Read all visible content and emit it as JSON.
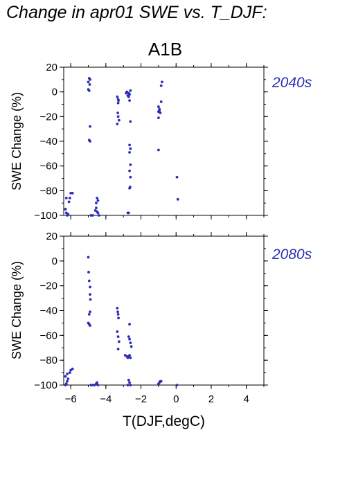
{
  "title": "Change in apr01 SWE vs. T_DJF:",
  "scenario": "A1B",
  "colors": {
    "points": "#2b2fb8",
    "period_label": "#2b2fb8",
    "axes": "#000000"
  },
  "chart_data": [
    {
      "type": "scatter",
      "panel_label": "2040s",
      "xlabel": "",
      "ylabel": "SWE Change (%)",
      "xlim": [
        -6.4,
        5.0
      ],
      "ylim": [
        -100,
        20
      ],
      "yticks": [
        20,
        0,
        -20,
        -40,
        -60,
        -80,
        -100
      ],
      "ytick_labels": [
        "20",
        "0",
        "−20",
        "−40",
        "−60",
        "−80",
        "−100"
      ],
      "grid": false,
      "points": [
        [
          -6.3,
          -95
        ],
        [
          -6.25,
          -98
        ],
        [
          -6.2,
          -100
        ],
        [
          -6.15,
          -99
        ],
        [
          -6.25,
          -86
        ],
        [
          -6.1,
          -89
        ],
        [
          -6.05,
          -86
        ],
        [
          -6.0,
          -82
        ],
        [
          -5.9,
          -82
        ],
        [
          -4.85,
          -100
        ],
        [
          -4.75,
          -100
        ],
        [
          -4.6,
          -96
        ],
        [
          -4.55,
          -94
        ],
        [
          -4.5,
          -97
        ],
        [
          -4.45,
          -98
        ],
        [
          -4.4,
          -100
        ],
        [
          -4.5,
          -86
        ],
        [
          -4.45,
          -88
        ],
        [
          -4.55,
          -90
        ],
        [
          -5.0,
          8
        ],
        [
          -4.95,
          11
        ],
        [
          -4.9,
          10
        ],
        [
          -4.92,
          6
        ],
        [
          -5.0,
          2
        ],
        [
          -4.95,
          1
        ],
        [
          -4.9,
          -28
        ],
        [
          -4.95,
          -39
        ],
        [
          -4.9,
          -40
        ],
        [
          -3.35,
          -4
        ],
        [
          -3.3,
          -6
        ],
        [
          -3.28,
          -7
        ],
        [
          -3.3,
          -9
        ],
        [
          -3.32,
          -17
        ],
        [
          -3.3,
          -20
        ],
        [
          -3.25,
          -23
        ],
        [
          -3.35,
          -26
        ],
        [
          -2.85,
          -1
        ],
        [
          -2.8,
          0
        ],
        [
          -2.75,
          -3
        ],
        [
          -2.7,
          -1
        ],
        [
          -2.65,
          -2
        ],
        [
          -2.6,
          1
        ],
        [
          -2.7,
          -4
        ],
        [
          -2.65,
          -7
        ],
        [
          -2.6,
          -24
        ],
        [
          -2.65,
          -43
        ],
        [
          -2.6,
          -46
        ],
        [
          -2.65,
          -49
        ],
        [
          -2.6,
          -59
        ],
        [
          -2.65,
          -64
        ],
        [
          -2.6,
          -69
        ],
        [
          -2.62,
          -77
        ],
        [
          -2.65,
          -78
        ],
        [
          -2.7,
          -98
        ],
        [
          -2.75,
          -98
        ],
        [
          -1.0,
          -12
        ],
        [
          -0.95,
          -14
        ],
        [
          -1.0,
          -16
        ],
        [
          -0.9,
          -17
        ],
        [
          -0.95,
          -15
        ],
        [
          -1.0,
          -21
        ],
        [
          -1.0,
          -47
        ],
        [
          -0.85,
          -8
        ],
        [
          -0.85,
          5
        ],
        [
          -0.8,
          8
        ],
        [
          0.05,
          -69
        ],
        [
          0.1,
          -87
        ]
      ]
    },
    {
      "type": "scatter",
      "panel_label": "2080s",
      "xlabel": "T(DJF,degC)",
      "ylabel": "SWE Change (%)",
      "xlim": [
        -6.4,
        5.0
      ],
      "ylim": [
        -100,
        20
      ],
      "xticks": [
        -6,
        -4,
        -2,
        0,
        2,
        4
      ],
      "xtick_labels": [
        "−6",
        "−4",
        "−2",
        "0",
        "2",
        "4"
      ],
      "yticks": [
        20,
        0,
        -20,
        -40,
        -60,
        -80,
        -100
      ],
      "ytick_labels": [
        "20",
        "0",
        "−20",
        "−40",
        "−60",
        "−80",
        "−100"
      ],
      "grid": false,
      "points": [
        [
          -6.3,
          -100
        ],
        [
          -6.25,
          -99
        ],
        [
          -6.2,
          -97
        ],
        [
          -6.15,
          -95
        ],
        [
          -6.3,
          -93
        ],
        [
          -6.2,
          -91
        ],
        [
          -6.05,
          -90
        ],
        [
          -6.0,
          -88
        ],
        [
          -5.9,
          -87
        ],
        [
          -4.85,
          -100
        ],
        [
          -4.75,
          -100
        ],
        [
          -4.65,
          -100
        ],
        [
          -4.55,
          -99
        ],
        [
          -4.5,
          -98
        ],
        [
          -4.45,
          -100
        ],
        [
          -5.0,
          3
        ],
        [
          -4.98,
          -9
        ],
        [
          -4.95,
          -16
        ],
        [
          -4.9,
          -21
        ],
        [
          -4.9,
          -27
        ],
        [
          -4.88,
          -31
        ],
        [
          -4.95,
          -43
        ],
        [
          -4.9,
          -41
        ],
        [
          -5.0,
          -50
        ],
        [
          -4.95,
          -51
        ],
        [
          -4.9,
          -52
        ],
        [
          -3.35,
          -38
        ],
        [
          -3.32,
          -41
        ],
        [
          -3.3,
          -43
        ],
        [
          -3.28,
          -46
        ],
        [
          -3.35,
          -57
        ],
        [
          -3.3,
          -61
        ],
        [
          -3.25,
          -65
        ],
        [
          -3.3,
          -71
        ],
        [
          -2.9,
          -76
        ],
        [
          -2.8,
          -77
        ],
        [
          -2.75,
          -78
        ],
        [
          -2.7,
          -77
        ],
        [
          -2.65,
          -76
        ],
        [
          -2.6,
          -78
        ],
        [
          -2.65,
          -51
        ],
        [
          -2.7,
          -61
        ],
        [
          -2.65,
          -63
        ],
        [
          -2.6,
          -66
        ],
        [
          -2.55,
          -69
        ],
        [
          -2.7,
          -96
        ],
        [
          -2.65,
          -98
        ],
        [
          -2.75,
          -100
        ],
        [
          -2.6,
          -100
        ],
        [
          -1.0,
          -99
        ],
        [
          -0.95,
          -98
        ],
        [
          -0.9,
          -97
        ],
        [
          -0.85,
          -97
        ],
        [
          0.05,
          -100
        ]
      ]
    }
  ]
}
